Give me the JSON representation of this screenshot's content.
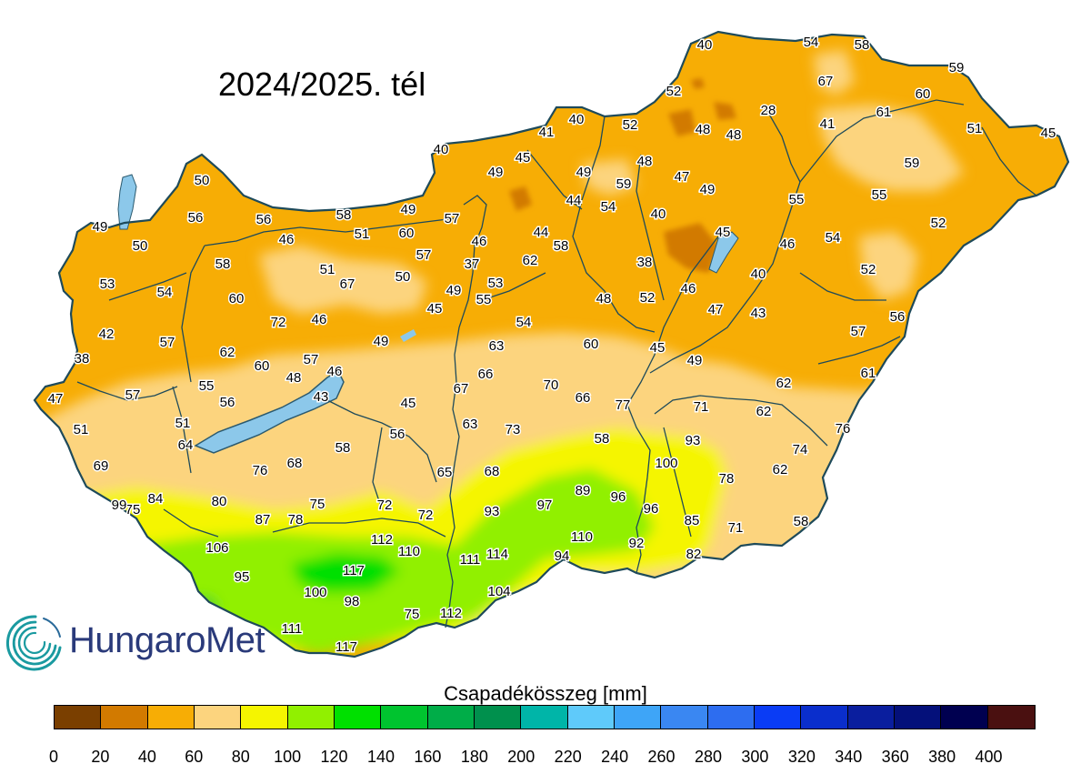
{
  "title": "2024/2025. tél",
  "logo_text": "HungaroMet",
  "legend": {
    "title": "Csapadékösszeg [mm]",
    "ticks": [
      "0",
      "20",
      "40",
      "60",
      "80",
      "100",
      "120",
      "140",
      "160",
      "180",
      "200",
      "220",
      "240",
      "260",
      "280",
      "300",
      "320",
      "340",
      "360",
      "380",
      "400"
    ],
    "colors": [
      "#7a3f00",
      "#d27a00",
      "#f7ad05",
      "#fcd47e",
      "#f5f500",
      "#91f000",
      "#00e000",
      "#00c42f",
      "#00ad48",
      "#00904d",
      "#00b5a8",
      "#5fcafa",
      "#3ea5f7",
      "#3a87f2",
      "#2d6df0",
      "#0a3cf5",
      "#0a2ecc",
      "#0a1e9e",
      "#04107a",
      "#000050",
      "#4a1010"
    ]
  },
  "stations": [
    {
      "v": "40"
    },
    {
      "v": "54"
    },
    {
      "v": "58"
    },
    {
      "v": "59"
    },
    {
      "v": "67"
    },
    {
      "v": "52"
    },
    {
      "v": "28"
    },
    {
      "v": "60"
    },
    {
      "v": "61"
    },
    {
      "v": "41"
    },
    {
      "v": "51"
    },
    {
      "v": "45"
    },
    {
      "v": "40"
    },
    {
      "v": "52"
    },
    {
      "v": "48"
    },
    {
      "v": "48"
    },
    {
      "v": "41"
    },
    {
      "v": "40"
    },
    {
      "v": "45"
    },
    {
      "v": "49"
    },
    {
      "v": "49"
    },
    {
      "v": "48"
    },
    {
      "v": "47"
    },
    {
      "v": "59"
    },
    {
      "v": "49"
    },
    {
      "v": "59"
    },
    {
      "v": "55"
    },
    {
      "v": "55"
    },
    {
      "v": "50"
    },
    {
      "v": "56"
    },
    {
      "v": "56"
    },
    {
      "v": "58"
    },
    {
      "v": "49"
    },
    {
      "v": "57"
    },
    {
      "v": "44"
    },
    {
      "v": "54"
    },
    {
      "v": "40"
    },
    {
      "v": "52"
    },
    {
      "v": "49"
    },
    {
      "v": "50"
    },
    {
      "v": "46"
    },
    {
      "v": "51"
    },
    {
      "v": "60"
    },
    {
      "v": "46"
    },
    {
      "v": "44"
    },
    {
      "v": "45"
    },
    {
      "v": "46"
    },
    {
      "v": "54"
    },
    {
      "v": "57"
    },
    {
      "v": "58"
    },
    {
      "v": "62"
    },
    {
      "v": "58"
    },
    {
      "v": "37"
    },
    {
      "v": "38"
    },
    {
      "v": "40"
    },
    {
      "v": "52"
    },
    {
      "v": "53"
    },
    {
      "v": "51"
    },
    {
      "v": "67"
    },
    {
      "v": "50"
    },
    {
      "v": "53"
    },
    {
      "v": "54"
    },
    {
      "v": "60"
    },
    {
      "v": "49"
    },
    {
      "v": "55"
    },
    {
      "v": "48"
    },
    {
      "v": "52"
    },
    {
      "v": "46"
    },
    {
      "v": "47"
    },
    {
      "v": "43"
    },
    {
      "v": "56"
    },
    {
      "v": "72"
    },
    {
      "v": "46"
    },
    {
      "v": "45"
    },
    {
      "v": "42"
    },
    {
      "v": "57"
    },
    {
      "v": "49"
    },
    {
      "v": "54"
    },
    {
      "v": "60"
    },
    {
      "v": "62"
    },
    {
      "v": "63"
    },
    {
      "v": "45"
    },
    {
      "v": "57"
    },
    {
      "v": "38"
    },
    {
      "v": "60"
    },
    {
      "v": "48"
    },
    {
      "v": "57"
    },
    {
      "v": "46"
    },
    {
      "v": "49"
    },
    {
      "v": "61"
    },
    {
      "v": "66"
    },
    {
      "v": "55"
    },
    {
      "v": "47"
    },
    {
      "v": "57"
    },
    {
      "v": "62"
    },
    {
      "v": "56"
    },
    {
      "v": "43"
    },
    {
      "v": "45"
    },
    {
      "v": "67"
    },
    {
      "v": "70"
    },
    {
      "v": "66"
    },
    {
      "v": "77"
    },
    {
      "v": "51"
    },
    {
      "v": "71"
    },
    {
      "v": "62"
    },
    {
      "v": "51"
    },
    {
      "v": "63"
    },
    {
      "v": "73"
    },
    {
      "v": "76"
    },
    {
      "v": "64"
    },
    {
      "v": "58"
    },
    {
      "v": "56"
    },
    {
      "v": "58"
    },
    {
      "v": "93"
    },
    {
      "v": "74"
    },
    {
      "v": "69"
    },
    {
      "v": "76"
    },
    {
      "v": "68"
    },
    {
      "v": "65"
    },
    {
      "v": "68"
    },
    {
      "v": "100"
    },
    {
      "v": "78"
    },
    {
      "v": "62"
    },
    {
      "v": "75"
    },
    {
      "v": "99"
    },
    {
      "v": "84"
    },
    {
      "v": "80"
    },
    {
      "v": "75"
    },
    {
      "v": "72"
    },
    {
      "v": "89"
    },
    {
      "v": "96"
    },
    {
      "v": "97"
    },
    {
      "v": "96"
    },
    {
      "v": "93"
    },
    {
      "v": "72"
    },
    {
      "v": "87"
    },
    {
      "v": "78"
    },
    {
      "v": "85"
    },
    {
      "v": "71"
    },
    {
      "v": "58"
    },
    {
      "v": "106"
    },
    {
      "v": "112"
    },
    {
      "v": "110"
    },
    {
      "v": "110"
    },
    {
      "v": "92"
    },
    {
      "v": "111"
    },
    {
      "v": "114"
    },
    {
      "v": "94"
    },
    {
      "v": "82"
    },
    {
      "v": "95"
    },
    {
      "v": "117"
    },
    {
      "v": "100"
    },
    {
      "v": "98"
    },
    {
      "v": "104"
    },
    {
      "v": "111"
    },
    {
      "v": "75"
    },
    {
      "v": "112"
    },
    {
      "v": "117"
    }
  ]
}
